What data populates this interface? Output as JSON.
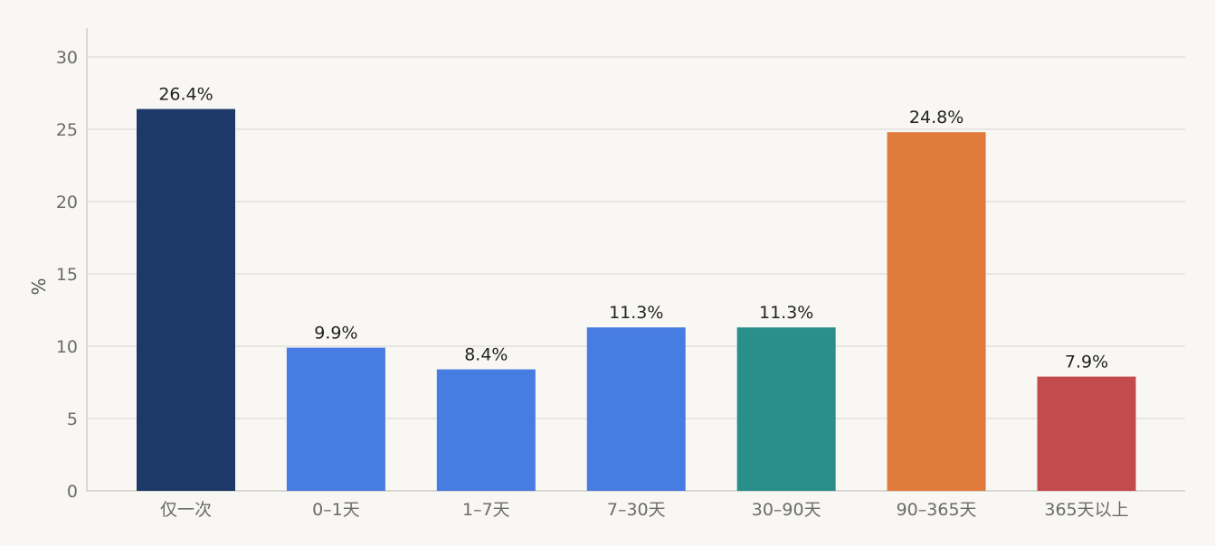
{
  "chart_data": {
    "type": "bar",
    "title": "",
    "xlabel": "",
    "ylabel": "%",
    "ylim": [
      0,
      32
    ],
    "yticks": [
      0,
      5,
      10,
      15,
      20,
      25,
      30
    ],
    "grid": true,
    "legend": "none",
    "categories": [
      "仅一次",
      "0–1天",
      "1–7天",
      "7–30天",
      "30–90天",
      "90–365天",
      "365天以上"
    ],
    "values": [
      26.4,
      9.9,
      8.4,
      11.3,
      11.3,
      24.8,
      7.9
    ],
    "data_labels": [
      "26.4%",
      "9.9%",
      "8.4%",
      "11.3%",
      "11.3%",
      "24.8%",
      "7.9%"
    ],
    "colors": [
      "#1c3968",
      "#477ce2",
      "#477ce2",
      "#477ce2",
      "#2a8f8a",
      "#e07b3c",
      "#c44b4d"
    ]
  }
}
